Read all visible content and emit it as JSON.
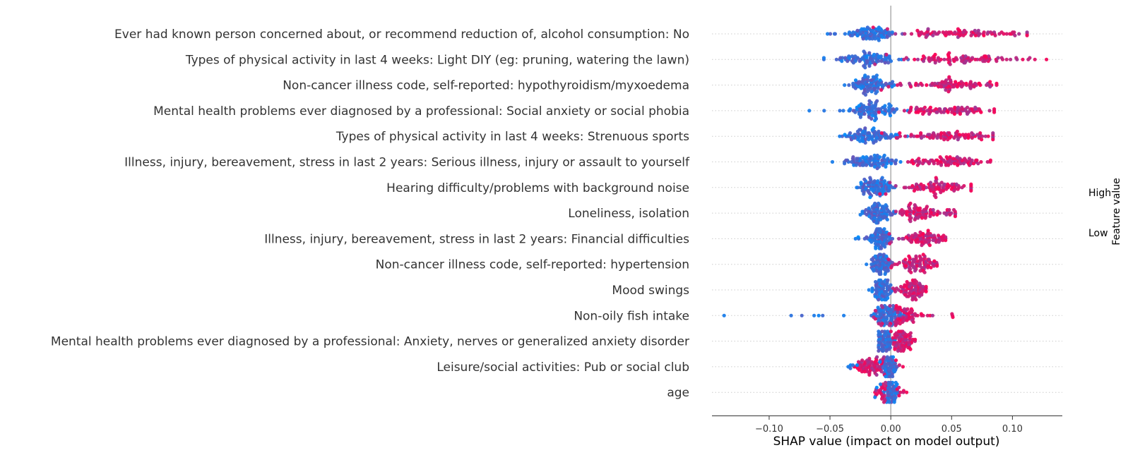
{
  "chart_data": {
    "type": "scatter",
    "subtype": "shap-beeswarm",
    "xlabel": "SHAP value (impact on model output)",
    "xlim": [
      -0.147,
      0.141
    ],
    "xticks": [
      -0.1,
      -0.05,
      0.0,
      0.05,
      0.1
    ],
    "xtick_labels": [
      "−0.10",
      "−0.05",
      "0.00",
      "0.05",
      "0.10"
    ],
    "colorbar": {
      "label": "Feature value",
      "high": "High",
      "low": "Low"
    },
    "colors": {
      "low": "#008bfb",
      "high": "#ff0052",
      "zero_line": "#999999",
      "grid": "#cccccc"
    },
    "features": [
      {
        "name": "Ever had known person concerned about, or recommend reduction of, alcohol consumption: No",
        "min": -0.052,
        "max": 0.112,
        "center": -0.018,
        "spread": 0.012,
        "high_center": 0.06,
        "high_spread": 0.025
      },
      {
        "name": "Types of physical activity in last 4 weeks: Light DIY (eg: pruning, watering the lawn)",
        "min": -0.055,
        "max": 0.128,
        "center": -0.018,
        "spread": 0.013,
        "high_center": 0.058,
        "high_spread": 0.027
      },
      {
        "name": "Non-cancer illness code, self-reported: hypothyroidism/myxoedema",
        "min": -0.038,
        "max": 0.087,
        "center": -0.016,
        "spread": 0.008,
        "high_center": 0.045,
        "high_spread": 0.02
      },
      {
        "name": "Mental health problems ever diagnosed by a professional: Social anxiety or social phobia",
        "min": -0.067,
        "max": 0.085,
        "center": -0.016,
        "spread": 0.011,
        "high_center": 0.048,
        "high_spread": 0.018
      },
      {
        "name": "Types of physical activity in last 4 weeks: Strenuous sports",
        "min": -0.042,
        "max": 0.084,
        "center": -0.016,
        "spread": 0.01,
        "high_center": 0.05,
        "high_spread": 0.018
      },
      {
        "name": "Illness, injury, bereavement, stress in last 2 years: Serious illness, injury or assault to yourself",
        "min": -0.048,
        "max": 0.082,
        "center": -0.016,
        "spread": 0.011,
        "high_center": 0.048,
        "high_spread": 0.018
      },
      {
        "name": "Hearing difficulty/problems with background noise",
        "min": -0.028,
        "max": 0.066,
        "center": -0.012,
        "spread": 0.007,
        "high_center": 0.038,
        "high_spread": 0.014
      },
      {
        "name": "Loneliness, isolation",
        "min": -0.025,
        "max": 0.053,
        "center": -0.01,
        "spread": 0.006,
        "high_center": 0.03,
        "high_spread": 0.011
      },
      {
        "name": "Illness, injury, bereavement, stress in last 2 years: Financial difficulties",
        "min": -0.029,
        "max": 0.045,
        "center": -0.009,
        "spread": 0.005,
        "high_center": 0.024,
        "high_spread": 0.01
      },
      {
        "name": "Non-cancer illness code, self-reported: hypertension",
        "min": -0.02,
        "max": 0.038,
        "center": -0.008,
        "spread": 0.004,
        "high_center": 0.024,
        "high_spread": 0.007
      },
      {
        "name": "Mood swings",
        "min": -0.018,
        "max": 0.029,
        "center": -0.007,
        "spread": 0.004,
        "high_center": 0.017,
        "high_spread": 0.006
      },
      {
        "name": "Non-oily fish intake",
        "min": -0.137,
        "max": 0.051,
        "center": -0.002,
        "spread": 0.008,
        "high_center": 0.01,
        "high_spread": 0.01
      },
      {
        "name": "Mental health problems ever diagnosed by a professional: Anxiety, nerves or generalized anxiety disorder",
        "min": -0.01,
        "max": 0.02,
        "center": -0.005,
        "spread": 0.003,
        "high_center": 0.01,
        "high_spread": 0.004
      },
      {
        "name": "Leisure/social activities: Pub or social club",
        "min": -0.035,
        "max": 0.01,
        "center": -0.001,
        "spread": 0.003,
        "high_center": -0.015,
        "high_spread": 0.008
      },
      {
        "name": "age",
        "min": -0.013,
        "max": 0.013,
        "center": 0.0,
        "spread": 0.003,
        "high_center": -0.004,
        "high_spread": 0.004
      }
    ]
  }
}
